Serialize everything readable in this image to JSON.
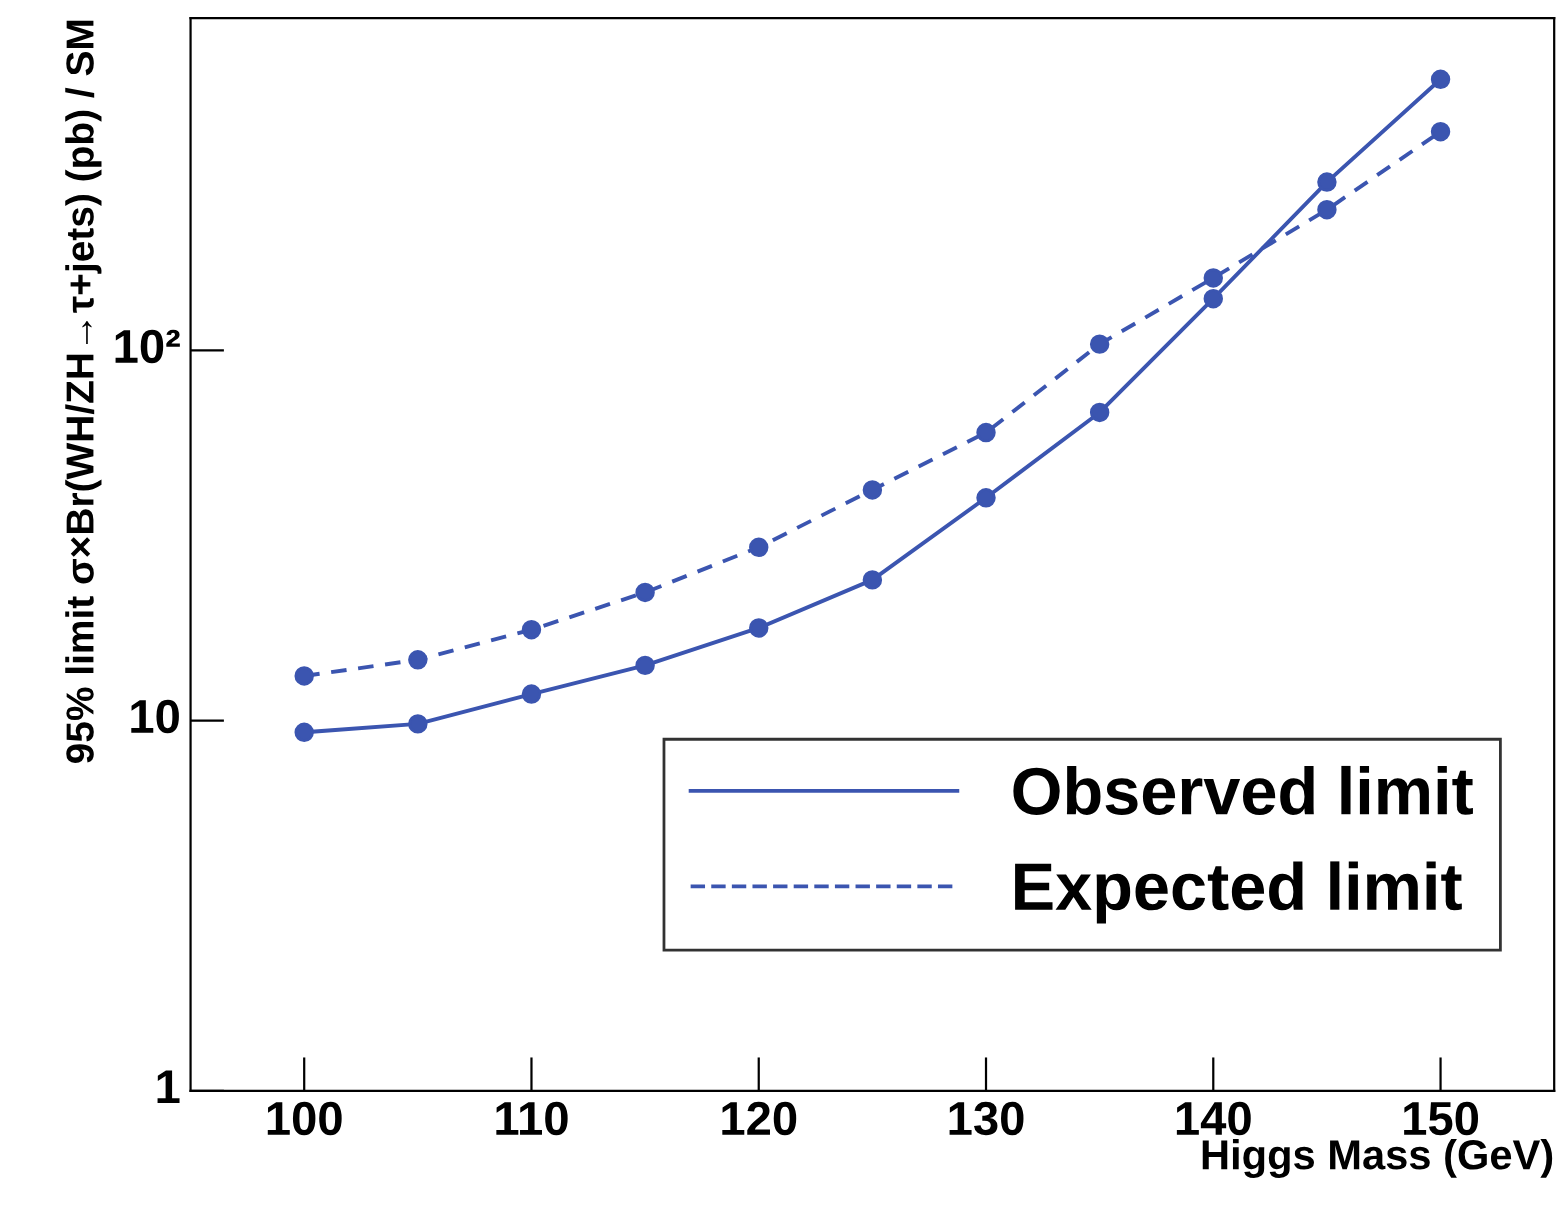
{
  "chart_data": {
    "type": "line",
    "xlabel": "Higgs Mass (GeV)",
    "ylabel": "95% limit σ×Br(WH/ZH→τ+jets) (pb) / SM",
    "x": [
      100,
      105,
      110,
      115,
      120,
      125,
      130,
      135,
      140,
      145,
      150
    ],
    "series": [
      {
        "name": "Observed limit",
        "color": "#3b55b0",
        "line_style": "solid",
        "values": [
          9.3,
          9.8,
          11.8,
          14.1,
          17.8,
          24,
          40,
          68,
          138,
          285,
          540
        ]
      },
      {
        "name": "Expected limit",
        "color": "#3b55b0",
        "line_style": "dashed",
        "values": [
          13.2,
          14.6,
          17.6,
          22.2,
          29.4,
          42,
          60,
          104,
          157,
          240,
          390
        ]
      }
    ],
    "log": "y",
    "marker": "circle",
    "xlim": [
      95,
      155
    ],
    "xticks": [
      100,
      110,
      120,
      130,
      140,
      150
    ],
    "ylim": [
      1,
      790
    ],
    "yticks": [
      1,
      10,
      {
        "value": 100,
        "label": "10²"
      }
    ],
    "grid": false,
    "legend": "bottom right"
  }
}
